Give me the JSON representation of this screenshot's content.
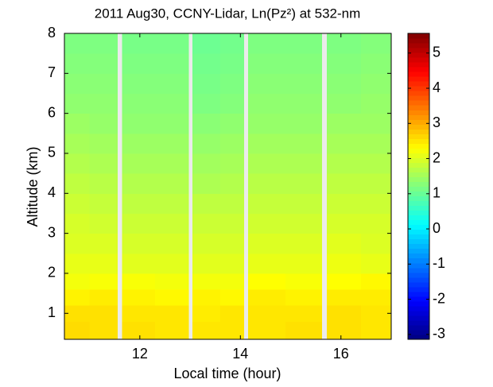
{
  "chart_data": {
    "type": "heatmap",
    "title": "2011 Aug30, CCNY-Lidar, Ln(Pz²) at 532-nm",
    "x_label": "Local time (hour)",
    "y_label": "Altitude (km)",
    "xlim": [
      10.5,
      17.0
    ],
    "ylim": [
      0.35,
      8
    ],
    "xticks": [
      12,
      14,
      16
    ],
    "yticks": [
      1,
      2,
      3,
      4,
      5,
      6,
      7,
      8
    ],
    "colormap": "jet",
    "gap_color": "#ebebeb",
    "clim": [
      -3.14,
      5.56
    ],
    "cticks": [
      -3,
      -2,
      -1,
      0,
      1,
      2,
      3,
      4,
      5
    ],
    "x_edges": [
      10.5,
      11.0,
      11.55,
      11.65,
      12.3,
      12.97,
      13.05,
      13.6,
      14.07,
      14.15,
      14.9,
      15.62,
      15.72,
      16.4,
      17.0
    ],
    "y_edges": [
      0.35,
      0.8,
      1.2,
      1.6,
      2.0,
      2.5,
      3,
      3.5,
      4,
      4.5,
      5,
      5.5,
      6,
      6.5,
      7,
      7.5,
      8
    ],
    "z": [
      [
        2.6,
        2.55,
        null,
        2.55,
        2.5,
        null,
        2.5,
        2.5,
        null,
        2.5,
        2.55,
        null,
        2.55,
        2.5
      ],
      [
        2.55,
        2.55,
        null,
        2.5,
        2.5,
        null,
        2.45,
        2.5,
        null,
        2.5,
        2.5,
        null,
        2.55,
        2.5
      ],
      [
        2.4,
        2.45,
        null,
        2.4,
        2.35,
        null,
        2.4,
        2.35,
        null,
        2.45,
        2.4,
        null,
        2.45,
        2.45
      ],
      [
        2.2,
        2.25,
        null,
        2.25,
        2.2,
        null,
        2.2,
        2.2,
        null,
        2.3,
        2.25,
        null,
        2.3,
        2.35
      ],
      [
        2.1,
        2.1,
        null,
        2.05,
        2.05,
        null,
        2.05,
        2.05,
        null,
        2.1,
        2.1,
        null,
        2.15,
        2.1
      ],
      [
        2.0,
        2.0,
        null,
        1.95,
        1.95,
        null,
        1.95,
        1.95,
        null,
        2.0,
        2.0,
        null,
        2.05,
        2.0
      ],
      [
        1.95,
        1.9,
        null,
        1.85,
        1.85,
        null,
        1.85,
        1.85,
        null,
        1.9,
        1.9,
        null,
        1.95,
        1.95
      ],
      [
        1.85,
        1.8,
        null,
        1.75,
        1.75,
        null,
        1.75,
        1.75,
        null,
        1.8,
        1.8,
        null,
        1.85,
        1.85
      ],
      [
        1.75,
        1.7,
        null,
        1.65,
        1.65,
        null,
        1.6,
        1.65,
        null,
        1.7,
        1.7,
        null,
        1.75,
        1.75
      ],
      [
        1.65,
        1.6,
        null,
        1.55,
        1.55,
        null,
        1.5,
        1.55,
        null,
        1.6,
        1.6,
        null,
        1.65,
        1.65
      ],
      [
        1.55,
        1.5,
        null,
        1.45,
        1.45,
        null,
        1.4,
        1.45,
        null,
        1.5,
        1.5,
        null,
        1.55,
        1.55
      ],
      [
        1.45,
        1.4,
        null,
        1.35,
        1.35,
        null,
        1.3,
        1.35,
        null,
        1.4,
        1.4,
        null,
        1.45,
        1.45
      ],
      [
        1.35,
        1.35,
        null,
        1.3,
        1.3,
        null,
        1.2,
        1.25,
        null,
        1.35,
        1.35,
        null,
        1.35,
        1.4
      ],
      [
        1.3,
        1.3,
        null,
        1.25,
        1.25,
        null,
        1.15,
        1.2,
        null,
        1.3,
        1.3,
        null,
        1.3,
        1.35
      ],
      [
        1.25,
        1.25,
        null,
        1.2,
        1.2,
        null,
        1.1,
        1.15,
        null,
        1.25,
        1.25,
        null,
        1.25,
        1.3
      ],
      [
        1.2,
        1.2,
        null,
        1.15,
        1.15,
        null,
        1.05,
        1.1,
        null,
        1.2,
        1.2,
        null,
        1.2,
        1.25
      ]
    ]
  }
}
